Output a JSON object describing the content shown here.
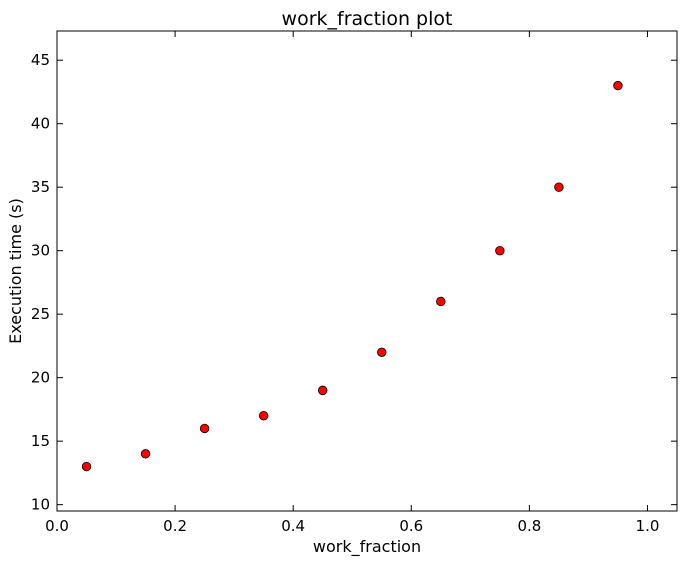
{
  "chart_data": {
    "type": "scatter",
    "title": "work_fraction plot",
    "xlabel": "work_fraction",
    "ylabel": "Execution time (s)",
    "xlim": [
      0.0,
      1.05
    ],
    "ylim": [
      9.5,
      47.3
    ],
    "grid": false,
    "xticks": [
      0.0,
      0.2,
      0.4,
      0.6,
      0.8,
      1.0
    ],
    "xtick_labels": [
      "0.0",
      "0.2",
      "0.4",
      "0.6",
      "0.8",
      "1.0"
    ],
    "yticks": [
      10,
      15,
      20,
      25,
      30,
      35,
      40,
      45
    ],
    "ytick_labels": [
      "10",
      "15",
      "20",
      "25",
      "30",
      "35",
      "40",
      "45"
    ],
    "marker_color": "#ff0000",
    "marker_edge_color": "#000000",
    "series": [
      {
        "x": [
          0.05,
          0.15,
          0.25,
          0.35,
          0.45,
          0.55,
          0.65,
          0.75,
          0.85,
          0.95
        ],
        "y": [
          13,
          14,
          16,
          17,
          19,
          22,
          26,
          30,
          35,
          43
        ]
      }
    ]
  }
}
